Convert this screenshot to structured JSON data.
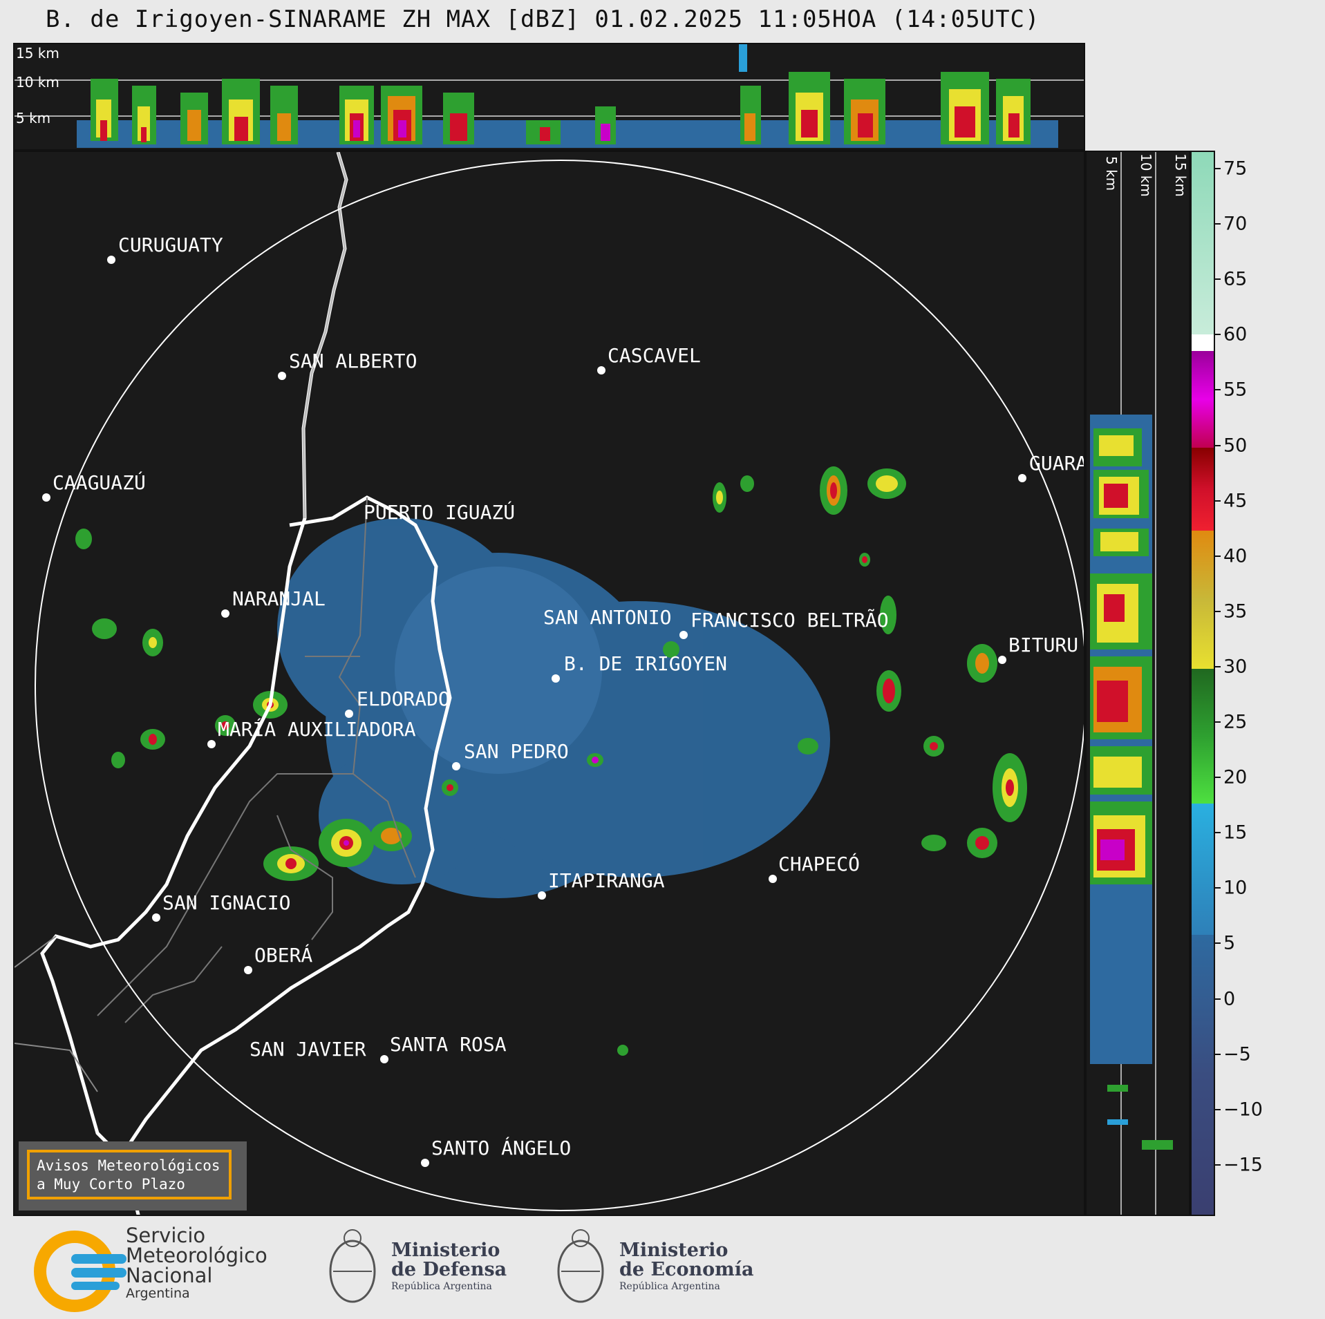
{
  "title": "B. de Irigoyen-SINARAME ZH MAX [dBZ] 01.02.2025 11:05HOA (14:05UTC)",
  "top_strip_labels": [
    "15 km",
    "10 km",
    "5 km"
  ],
  "right_strip_labels": [
    "5 km",
    "10 km",
    "15 km"
  ],
  "colorbar": {
    "ticks": [
      "75",
      "70",
      "65",
      "60",
      "55",
      "50",
      "45",
      "40",
      "35",
      "30",
      "25",
      "20",
      "15",
      "10",
      "5",
      "0",
      "−5",
      "−10",
      "−15"
    ],
    "colors": {
      "high": "#8ed9b8",
      "white": "#ffffff",
      "magenta": "#c800c8",
      "red": "#d0102a",
      "orange": "#e08a10",
      "yellow": "#e8e030",
      "green": "#2ea030",
      "lightblue": "#2a9fd8",
      "blue": "#2e6aa0",
      "navy": "#3a3f70"
    }
  },
  "cities": [
    {
      "name": "CURUGUATY"
    },
    {
      "name": "SAN ALBERTO"
    },
    {
      "name": "CASCAVEL"
    },
    {
      "name": "CAAGUAZÚ"
    },
    {
      "name": "PUERTO IGUAZÚ"
    },
    {
      "name": "GUARA"
    },
    {
      "name": "NARANJAL"
    },
    {
      "name": "SAN ANTONIO"
    },
    {
      "name": "FRANCISCO BELTRÃO"
    },
    {
      "name": "B. DE IRIGOYEN"
    },
    {
      "name": "BITURU"
    },
    {
      "name": "ELDORADO"
    },
    {
      "name": "MARÍA AUXILIADORA"
    },
    {
      "name": "SAN PEDRO"
    },
    {
      "name": "CHAPECÓ"
    },
    {
      "name": "ITAPIRANGA"
    },
    {
      "name": "SAN IGNACIO"
    },
    {
      "name": "OBERÁ"
    },
    {
      "name": "SAN JAVIER"
    },
    {
      "name": "SANTA ROSA"
    },
    {
      "name": "SANTO ÁNGELO"
    }
  ],
  "warning": {
    "line1": "Avisos Meteorológicos",
    "line2": "a Muy Corto Plazo"
  },
  "footer": {
    "smn": {
      "line1": "Servicio",
      "line2": "Meteorológico",
      "line3": "Nacional",
      "line4": "Argentina"
    },
    "defensa": {
      "line1": "Ministerio",
      "line2": "de Defensa",
      "line3": "República Argentina"
    },
    "economia": {
      "line1": "Ministerio",
      "line2": "de Economía",
      "line3": "República Argentina"
    }
  }
}
